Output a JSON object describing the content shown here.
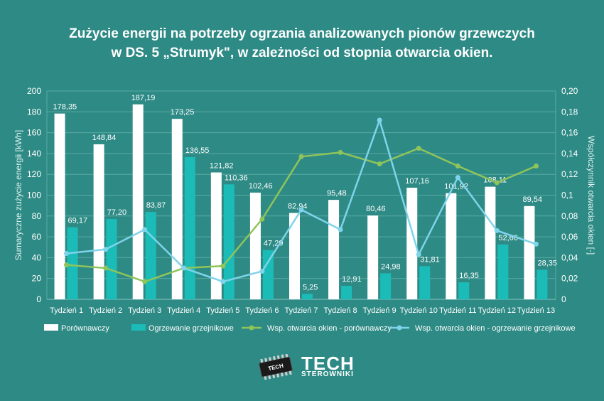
{
  "chart_data": {
    "type": "bar",
    "title_line1": "Zużycie energii na potrzeby ogrzania analizowanych pionów grzewczych",
    "title_line2": "w DS. 5 „Strumyk\", w zależności od stopnia otwarcia okien.",
    "ylabel": "Sumaryczne zużycie energii [kWh]",
    "y2label": "Współczynnik otwarcia okien [-]",
    "ylim": [
      0,
      200
    ],
    "y2lim": [
      0,
      0.2
    ],
    "yticks": [
      "0",
      "20",
      "40",
      "60",
      "80",
      "100",
      "120",
      "140",
      "160",
      "180",
      "200"
    ],
    "y2ticks": [
      "0",
      "0,02",
      "0,04",
      "0,06",
      "0,08",
      "0,1",
      "0,12",
      "0,14",
      "0,16",
      "0,18",
      "0,20"
    ],
    "categories": [
      "Tydzień 1",
      "Tydzień 2",
      "Tydzień 3",
      "Tydzień 4",
      "Tydzień 5",
      "Tydzień 6",
      "Tydzień 7",
      "Tydzień 8",
      "Tydzień 9",
      "Tydzień 10",
      "Tydzień 11",
      "Tydzień 12",
      "Tydzień 13"
    ],
    "bar_series": [
      {
        "name": "Porównawczy",
        "color": "#ffffff",
        "values": [
          178.35,
          148.84,
          187.19,
          173.25,
          121.82,
          102.46,
          82.94,
          95.48,
          80.46,
          107.16,
          101.92,
          108.11,
          89.54
        ],
        "labels": [
          "178,35",
          "148,84",
          "187,19",
          "173,25",
          "121,82",
          "102,46",
          "82,94",
          "95,48",
          "80,46",
          "107,16",
          "101,92",
          "108,11",
          "89,54"
        ]
      },
      {
        "name": "Ogrzewanie grzejnikowe",
        "color": "#1bbcb8",
        "values": [
          69.17,
          77.2,
          83.87,
          136.55,
          110.36,
          47.29,
          5.25,
          12.91,
          24.98,
          31.81,
          16.35,
          52.66,
          28.35
        ],
        "labels": [
          "69,17",
          "77,20",
          "83,87",
          "136,55",
          "110,36",
          "47,29",
          "5,25",
          "12,91",
          "24,98",
          "31,81",
          "16,35",
          "52,66",
          "28,35"
        ]
      }
    ],
    "line_series": [
      {
        "name": "Wsp. otwarcia okien - porównawczy",
        "color": "#8fc45a",
        "values": [
          0.033,
          0.03,
          0.017,
          0.03,
          0.032,
          0.077,
          0.137,
          0.141,
          0.13,
          0.145,
          0.128,
          0.112,
          0.128
        ]
      },
      {
        "name": "Wsp. otwarcia okien - ogrzewanie grzejnikowe",
        "color": "#7fd3ea",
        "values": [
          0.044,
          0.048,
          0.067,
          0.03,
          0.017,
          0.027,
          0.086,
          0.067,
          0.172,
          0.043,
          0.117,
          0.066,
          0.053
        ]
      }
    ],
    "grid": true,
    "legend_position": "bottom"
  },
  "logo": {
    "brand": "TECH",
    "sub": "STEROWNIKI",
    "chip_text": "TECH"
  }
}
